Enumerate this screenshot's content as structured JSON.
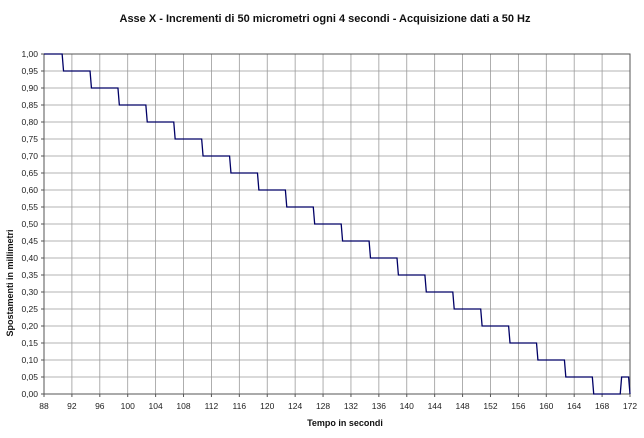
{
  "chart_data": {
    "type": "line",
    "title": "Asse X - Incrementi di 50 micrometri ogni 4 secondi - Acquisizione dati a 50 Hz",
    "xlabel": "Tempo in secondi",
    "ylabel": "Spostamenti in millimetri",
    "xlim": [
      88,
      172
    ],
    "ylim": [
      0,
      1
    ],
    "x_ticks": [
      "88",
      "92",
      "96",
      "100",
      "104",
      "108",
      "112",
      "116",
      "120",
      "124",
      "128",
      "132",
      "136",
      "140",
      "144",
      "148",
      "152",
      "156",
      "160",
      "164",
      "168",
      "172"
    ],
    "y_ticks": [
      "0,00",
      "0,05",
      "0,10",
      "0,15",
      "0,20",
      "0,25",
      "0,30",
      "0,35",
      "0,40",
      "0,45",
      "0,50",
      "0,55",
      "0,60",
      "0,65",
      "0,70",
      "0,75",
      "0,80",
      "0,85",
      "0,90",
      "0,95",
      "1,00"
    ],
    "grid": true,
    "series": [
      {
        "color": "#000066",
        "x": [
          88.0,
          90.6,
          90.8,
          94.6,
          94.8,
          98.6,
          98.8,
          102.6,
          102.8,
          106.6,
          106.8,
          110.6,
          110.8,
          114.6,
          114.8,
          118.6,
          118.8,
          122.6,
          122.8,
          126.6,
          126.8,
          130.6,
          130.8,
          134.6,
          134.8,
          138.6,
          138.8,
          142.6,
          142.8,
          146.6,
          146.8,
          150.6,
          150.8,
          154.6,
          154.8,
          158.6,
          158.8,
          162.6,
          162.8,
          166.6,
          166.8,
          170.6,
          170.8,
          171.8,
          172.0
        ],
        "y": [
          1.0,
          1.0,
          0.95,
          0.95,
          0.9,
          0.9,
          0.85,
          0.85,
          0.8,
          0.8,
          0.75,
          0.75,
          0.7,
          0.7,
          0.65,
          0.65,
          0.6,
          0.6,
          0.55,
          0.55,
          0.5,
          0.5,
          0.45,
          0.45,
          0.4,
          0.4,
          0.35,
          0.35,
          0.3,
          0.3,
          0.25,
          0.25,
          0.2,
          0.2,
          0.15,
          0.15,
          0.1,
          0.1,
          0.05,
          0.05,
          0.0,
          0.0,
          0.05,
          0.05,
          0.0
        ]
      }
    ]
  }
}
